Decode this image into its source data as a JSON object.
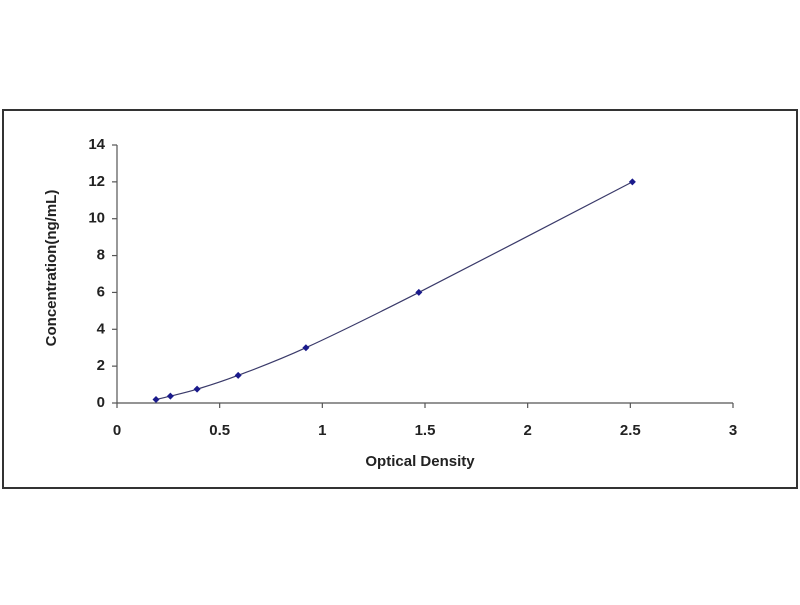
{
  "chart_data": {
    "type": "scatter",
    "x_label": "Optical Density",
    "y_label": "Concentration(ng/mL)",
    "series": [
      {
        "color": "#1a1a8c",
        "x": [
          0.19,
          0.26,
          0.39,
          0.59,
          0.92,
          1.47,
          2.51
        ],
        "values": [
          0.188,
          0.375,
          0.75,
          1.5,
          3,
          6,
          12
        ]
      }
    ],
    "line": true,
    "line_color": "#3a3a6a",
    "xlim": [
      0,
      3
    ],
    "xticks": [
      0,
      0.5,
      1,
      1.5,
      2,
      2.5,
      3
    ],
    "ylim": [
      0,
      14
    ],
    "yticks": [
      0,
      2,
      4,
      6,
      8,
      10,
      12,
      14
    ],
    "grid": false
  }
}
